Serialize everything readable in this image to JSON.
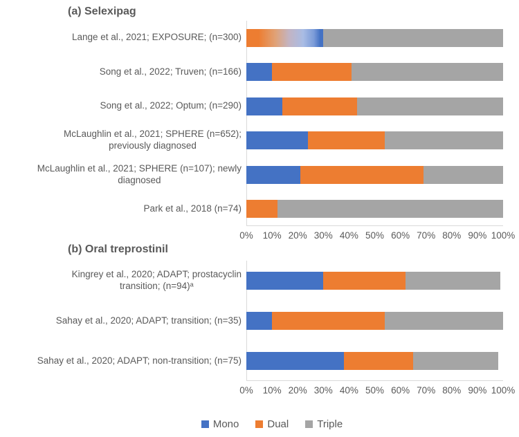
{
  "colors": {
    "mono": "#4472C4",
    "dual": "#ED7D31",
    "triple": "#A5A5A5",
    "text": "#595959",
    "axis_line": "#D9D9D9"
  },
  "chart_data": [
    {
      "type": "bar",
      "orientation": "horizontal",
      "stacked": true,
      "title": "(a) Selexipag",
      "unit": "%",
      "xlim": [
        0,
        100
      ],
      "grid": false,
      "x_ticks": [
        "0%",
        "10%",
        "20%",
        "30%",
        "40%",
        "50%",
        "60%",
        "70%",
        "80%",
        "90%",
        "100%"
      ],
      "series_names": [
        "Mono",
        "Dual",
        "Triple"
      ],
      "rows": [
        {
          "label": "Lange et al., 2021; EXPOSURE; (n=300)",
          "mono_dual_blended": 30,
          "triple": 70
        },
        {
          "label": "Song et al., 2022; Truven; (n=166)",
          "mono": 10,
          "dual": 31,
          "triple": 59
        },
        {
          "label": "Song et al., 2022; Optum; (n=290)",
          "mono": 14,
          "dual": 29,
          "triple": 57
        },
        {
          "label": "McLaughlin et al., 2021; SPHERE (n=652);\npreviously diagnosed",
          "mono": 24,
          "dual": 30,
          "triple": 46
        },
        {
          "label": "McLaughlin et al., 2021; SPHERE (n=107); newly\ndiagnosed",
          "mono": 21,
          "dual": 48,
          "triple": 31
        },
        {
          "label": "Park et al., 2018 (n=74)",
          "mono": 0,
          "dual": 12,
          "triple": 88
        }
      ]
    },
    {
      "type": "bar",
      "orientation": "horizontal",
      "stacked": true,
      "title": "(b) Oral treprostinil",
      "unit": "%",
      "xlim": [
        0,
        100
      ],
      "grid": false,
      "x_ticks": [
        "0%",
        "10%",
        "20%",
        "30%",
        "40%",
        "50%",
        "60%",
        "70%",
        "80%",
        "90%",
        "100%"
      ],
      "series_names": [
        "Mono",
        "Dual",
        "Triple"
      ],
      "rows": [
        {
          "label": "Kingrey et al., 2020; ADAPT; prostacyclin\ntransition; (n=94)ᵃ",
          "mono": 30,
          "dual": 32,
          "triple": 37
        },
        {
          "label": "Sahay et al., 2020; ADAPT; transition; (n=35)",
          "mono": 10,
          "dual": 44,
          "triple": 46
        },
        {
          "label": "Sahay et al., 2020; ADAPT; non-transition; (n=75)",
          "mono": 38,
          "dual": 27,
          "triple": 33
        }
      ]
    }
  ],
  "legend": {
    "items": [
      {
        "label": "Mono",
        "key": "mono",
        "color": "#4472C4"
      },
      {
        "label": "Dual",
        "key": "dual",
        "color": "#ED7D31"
      },
      {
        "label": "Triple",
        "key": "triple",
        "color": "#A5A5A5"
      }
    ]
  }
}
